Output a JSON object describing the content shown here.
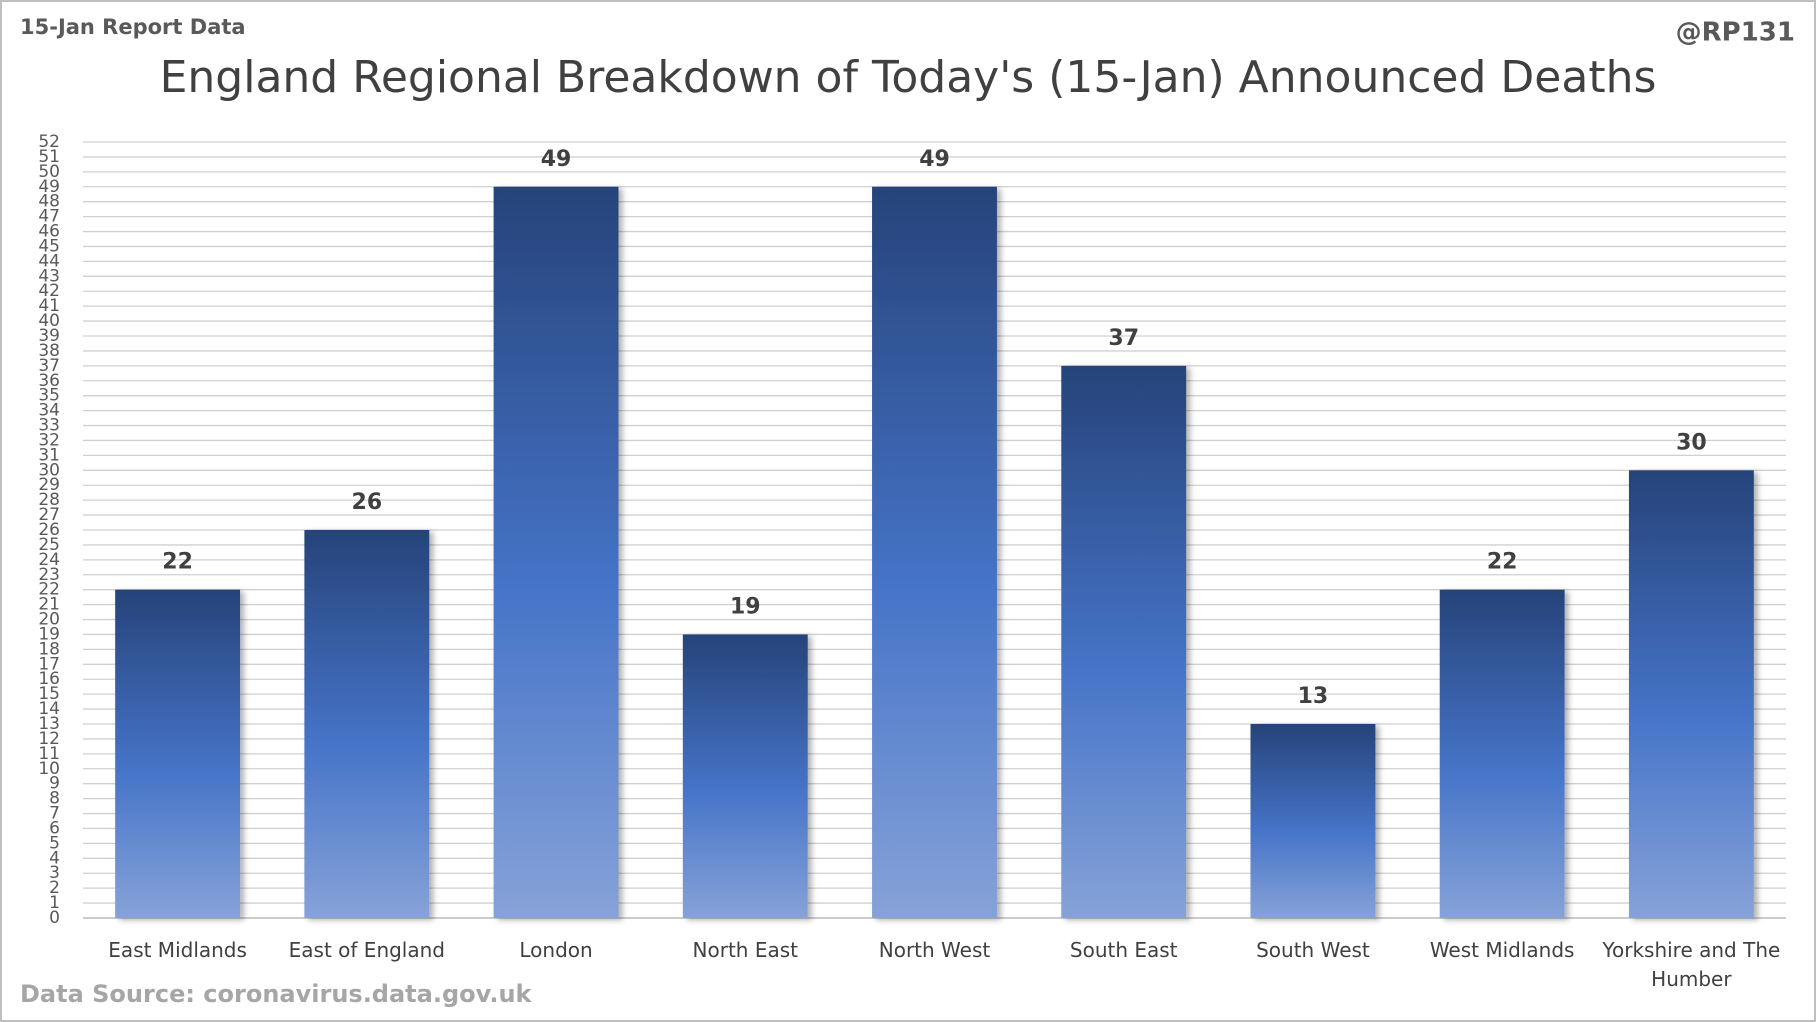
{
  "chart_data": {
    "type": "bar",
    "header_left": "15-Jan Report Data",
    "header_right": "@RP131",
    "title": "England Regional Breakdown of Today's (15-Jan) Announced Deaths",
    "source": "Data Source: coronavirus.data.gov.uk",
    "categories": [
      "East Midlands",
      "East of England",
      "London",
      "North East",
      "North West",
      "South East",
      "South West",
      "West Midlands",
      "Yorkshire and The Humber"
    ],
    "values": [
      22,
      26,
      49,
      19,
      49,
      37,
      13,
      22,
      30
    ],
    "color": "#4472c4",
    "ylim": [
      0,
      52
    ],
    "yticks": [
      0,
      1,
      2,
      3,
      4,
      5,
      6,
      7,
      8,
      9,
      10,
      11,
      12,
      13,
      14,
      15,
      16,
      17,
      18,
      19,
      20,
      21,
      22,
      23,
      24,
      25,
      26,
      27,
      28,
      29,
      30,
      31,
      32,
      33,
      34,
      35,
      36,
      37,
      38,
      39,
      40,
      41,
      42,
      43,
      44,
      45,
      46,
      47,
      48,
      49,
      50,
      51,
      52
    ],
    "grid": true
  }
}
